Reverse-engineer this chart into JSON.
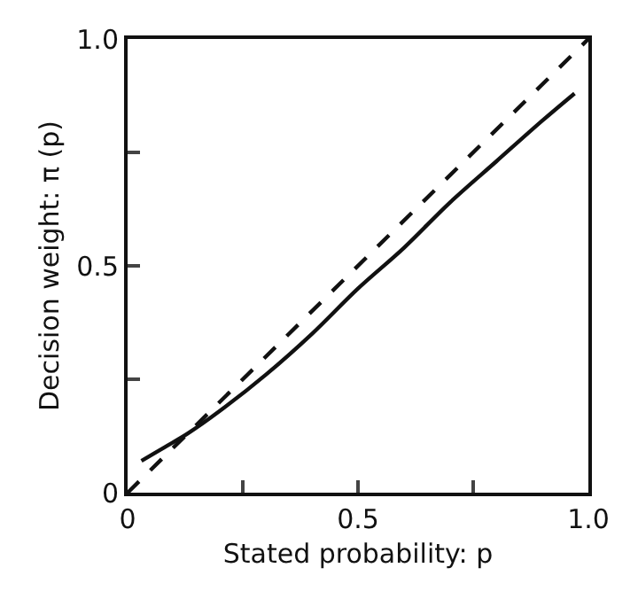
{
  "chart_data": {
    "type": "line",
    "xlabel": "Stated probability: p",
    "ylabel": "Decision weight: π (p)",
    "series": [
      {
        "x": [
          0.03,
          0.08,
          0.13,
          0.2,
          0.3,
          0.4,
          0.5,
          0.6,
          0.7,
          0.8,
          0.9,
          0.97
        ],
        "values": [
          0.07,
          0.1,
          0.13,
          0.18,
          0.26,
          0.35,
          0.45,
          0.54,
          0.64,
          0.73,
          0.82,
          0.88
        ],
        "color": "#111111",
        "line_style": "solid"
      },
      {
        "x": [
          0,
          1
        ],
        "values": [
          0,
          1
        ],
        "color": "#111111",
        "line_style": "dashed"
      }
    ],
    "xlim": [
      0,
      1
    ],
    "ylim": [
      0,
      1
    ],
    "xticks": [
      0,
      {
        "value": 0.25,
        "label": null
      },
      0.5,
      {
        "value": 0.75,
        "label": null
      },
      {
        "value": 1,
        "label": "1.0"
      }
    ],
    "yticks": [
      0,
      {
        "value": 0.25,
        "label": null
      },
      0.5,
      {
        "value": 0.75,
        "label": null
      },
      {
        "value": 1,
        "label": "1.0"
      }
    ],
    "grid": false,
    "marker": "none"
  }
}
